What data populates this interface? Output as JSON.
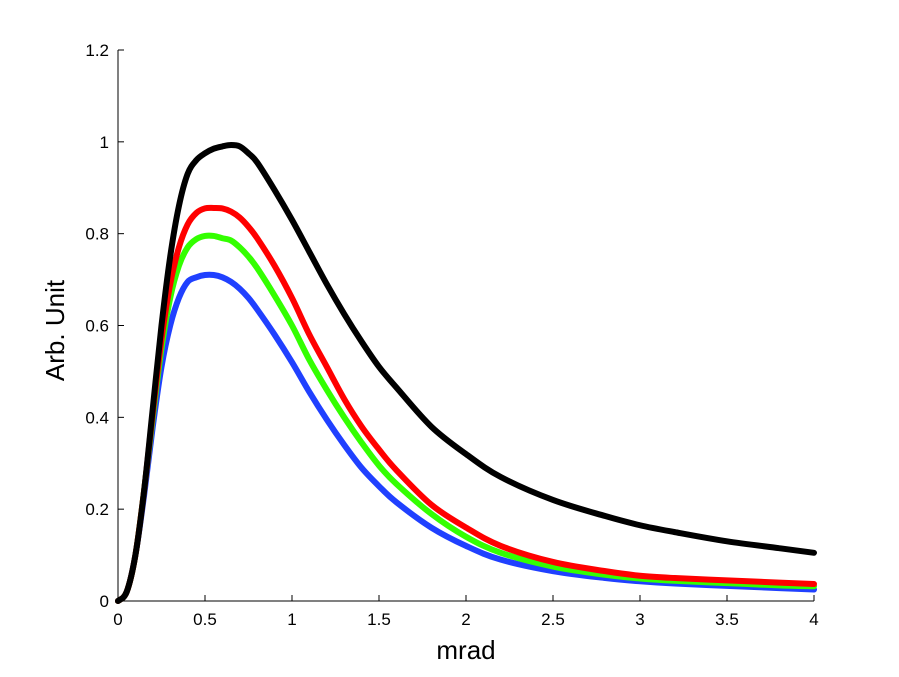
{
  "chart_data": {
    "type": "line",
    "title": "",
    "xlabel": "mrad",
    "ylabel": "Arb. Unit",
    "xlim": [
      0,
      4
    ],
    "ylim": [
      0,
      1.2
    ],
    "grid": false,
    "x_ticks": [
      0,
      0.5,
      1,
      1.5,
      2,
      2.5,
      3,
      3.5,
      4
    ],
    "x_tick_labels": [
      "0",
      "0.5",
      "1",
      "1.5",
      "2",
      "2.5",
      "3",
      "3.5",
      "4"
    ],
    "y_ticks": [
      0,
      0.2,
      0.4,
      0.6,
      0.8,
      1,
      1.2
    ],
    "y_tick_labels": [
      "0",
      "0.2",
      "0.4",
      "0.6",
      "0.8",
      "1",
      "1.2"
    ],
    "x": [
      0,
      0.05,
      0.1,
      0.15,
      0.2,
      0.25,
      0.3,
      0.35,
      0.4,
      0.45,
      0.5,
      0.55,
      0.6,
      0.65,
      0.7,
      0.75,
      0.8,
      0.9,
      1.0,
      1.1,
      1.2,
      1.3,
      1.4,
      1.5,
      1.6,
      1.8,
      2.0,
      2.2,
      2.5,
      2.8,
      3.0,
      3.2,
      3.5,
      3.8,
      4.0
    ],
    "series": [
      {
        "name": "black",
        "color": "#000000",
        "values": [
          0,
          0.02,
          0.1,
          0.24,
          0.42,
          0.6,
          0.75,
          0.86,
          0.93,
          0.96,
          0.975,
          0.985,
          0.99,
          0.993,
          0.99,
          0.975,
          0.955,
          0.895,
          0.83,
          0.76,
          0.69,
          0.625,
          0.565,
          0.51,
          0.465,
          0.38,
          0.32,
          0.27,
          0.22,
          0.185,
          0.165,
          0.15,
          0.13,
          0.115,
          0.105
        ]
      },
      {
        "name": "red",
        "color": "#ff0000",
        "values": [
          0,
          0.02,
          0.1,
          0.24,
          0.41,
          0.57,
          0.69,
          0.77,
          0.82,
          0.845,
          0.855,
          0.856,
          0.855,
          0.848,
          0.835,
          0.815,
          0.79,
          0.73,
          0.66,
          0.58,
          0.51,
          0.44,
          0.38,
          0.33,
          0.285,
          0.21,
          0.16,
          0.12,
          0.085,
          0.065,
          0.055,
          0.05,
          0.045,
          0.04,
          0.037
        ]
      },
      {
        "name": "green",
        "color": "#33ff00",
        "values": [
          0,
          0.02,
          0.1,
          0.24,
          0.4,
          0.55,
          0.66,
          0.73,
          0.77,
          0.788,
          0.795,
          0.795,
          0.79,
          0.785,
          0.77,
          0.75,
          0.725,
          0.665,
          0.6,
          0.525,
          0.46,
          0.4,
          0.345,
          0.295,
          0.255,
          0.19,
          0.14,
          0.105,
          0.075,
          0.057,
          0.049,
          0.044,
          0.039,
          0.034,
          0.032
        ]
      },
      {
        "name": "blue",
        "color": "#2040ff",
        "values": [
          0,
          0.02,
          0.1,
          0.23,
          0.38,
          0.51,
          0.6,
          0.66,
          0.695,
          0.705,
          0.71,
          0.71,
          0.705,
          0.695,
          0.68,
          0.66,
          0.635,
          0.58,
          0.52,
          0.455,
          0.395,
          0.34,
          0.29,
          0.25,
          0.215,
          0.16,
          0.12,
          0.09,
          0.065,
          0.05,
          0.043,
          0.038,
          0.033,
          0.028,
          0.025
        ]
      }
    ]
  }
}
